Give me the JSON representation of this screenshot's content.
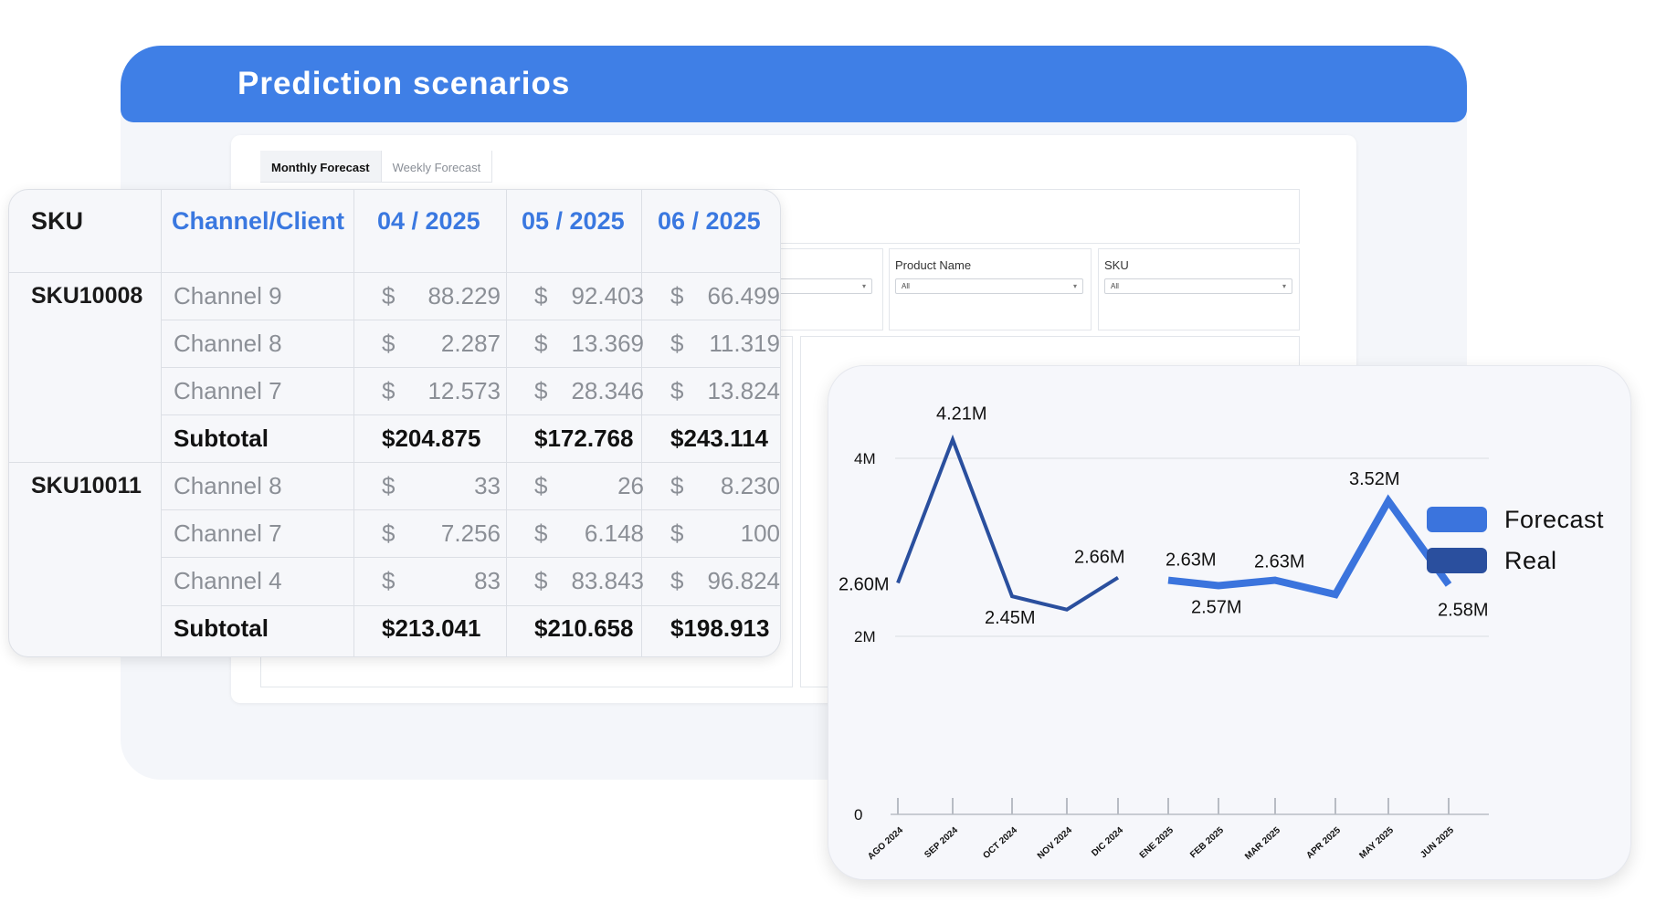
{
  "header": {
    "title": "Prediction scenarios"
  },
  "tabs": [
    {
      "label": "Monthly Forecast",
      "active": true
    },
    {
      "label": "Weekly Forecast",
      "active": false
    }
  ],
  "filters": [
    {
      "label": "",
      "value": ""
    },
    {
      "label": "Product Name",
      "value": "All"
    },
    {
      "label": "SKU",
      "value": "All"
    }
  ],
  "table": {
    "headers": [
      "SKU",
      "Channel/Client",
      "04 / 2025",
      "05 / 2025",
      "06 / 2025"
    ],
    "groups": [
      {
        "sku": "SKU10008",
        "rows": [
          {
            "channel": "Channel 9",
            "values": [
              "88.229",
              "92.403",
              "66.499"
            ]
          },
          {
            "channel": "Channel 8",
            "values": [
              "2.287",
              "13.369",
              "11.319"
            ]
          },
          {
            "channel": "Channel 7",
            "values": [
              "12.573",
              "28.346",
              "13.824"
            ]
          }
        ],
        "subtotal": {
          "label": "Subtotal",
          "values": [
            "$204.875",
            "$172.768",
            "$243.114"
          ]
        }
      },
      {
        "sku": "SKU10011",
        "rows": [
          {
            "channel": "Channel 8",
            "values": [
              "33",
              "26",
              "8.230"
            ]
          },
          {
            "channel": "Channel 7",
            "values": [
              "7.256",
              "6.148",
              "100"
            ]
          },
          {
            "channel": "Channel 4",
            "values": [
              "83",
              "83.843",
              "96.824"
            ]
          }
        ],
        "subtotal": {
          "label": "Subtotal",
          "values": [
            "$213.041",
            "$210.658",
            "$198.913"
          ]
        }
      }
    ],
    "currency_symbol": "$"
  },
  "chart_data": {
    "type": "line",
    "categories": [
      "AGO 2024",
      "SEP 2024",
      "OCT 2024",
      "NOV 2024",
      "DIC 2024",
      "ENE 2025",
      "FEB 2025",
      "MAR 2025",
      "APR 2025",
      "MAY 2025",
      "JUN 2025"
    ],
    "series": [
      {
        "name": "Real",
        "color": "#2a4f9e",
        "values": [
          2.6,
          4.21,
          2.45,
          2.3,
          2.66,
          null,
          null,
          null,
          null,
          null,
          null
        ],
        "labels": [
          "2.60M",
          "4.21M",
          "2.45M",
          "",
          "2.66M",
          "",
          "",
          "",
          "",
          "",
          ""
        ]
      },
      {
        "name": "Forecast",
        "color": "#3b74dd",
        "values": [
          null,
          null,
          null,
          null,
          null,
          2.63,
          2.57,
          2.63,
          2.47,
          3.52,
          2.58
        ],
        "labels": [
          "",
          "",
          "",
          "",
          "",
          "2.63M",
          "2.57M",
          "2.63M",
          "",
          "3.52M",
          "2.58M"
        ]
      }
    ],
    "y_ticks": [
      "0",
      "2M",
      "4M"
    ],
    "ylim": [
      0,
      4.5
    ],
    "grid": true,
    "legend": [
      {
        "label": "Forecast",
        "color": "#3b74dd"
      },
      {
        "label": "Real",
        "color": "#2a4f9e"
      }
    ],
    "legend_position": "right"
  }
}
